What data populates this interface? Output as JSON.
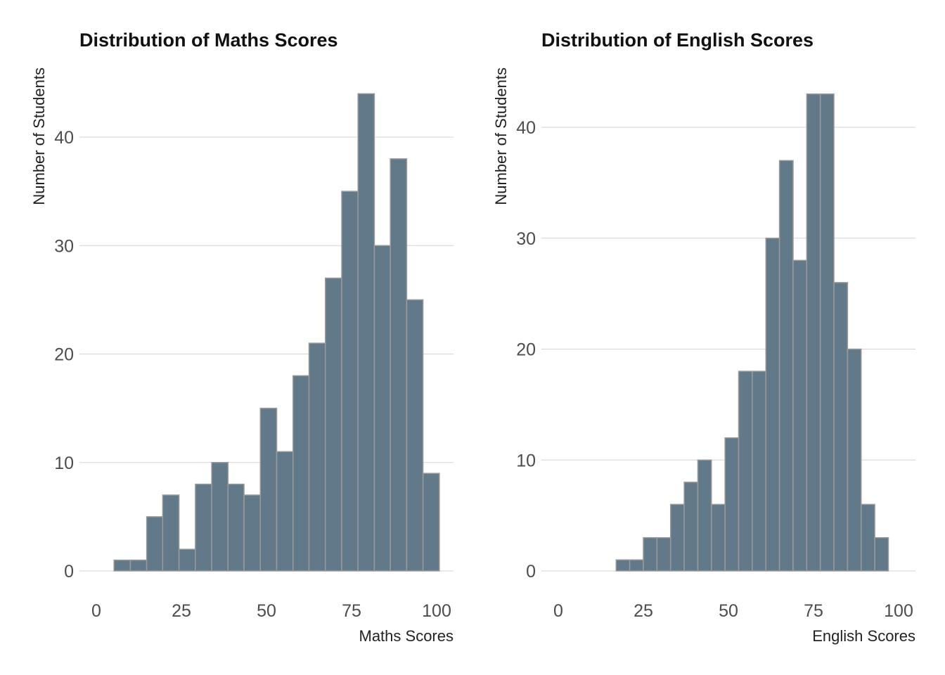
{
  "chart_data": [
    {
      "type": "bar",
      "title": "Distribution of Maths Scores",
      "xlabel": "Maths Scores",
      "ylabel": "Number of Students",
      "xlim": [
        0,
        105
      ],
      "ylim": [
        0,
        44
      ],
      "xticks": [
        0,
        25,
        50,
        75,
        100
      ],
      "yticks": [
        0,
        10,
        20,
        30,
        40
      ],
      "grid": "horizontal",
      "bar_color": "#62798A",
      "bin_edges": [
        5.2,
        10.0,
        14.8,
        19.5,
        24.3,
        29.1,
        33.9,
        38.7,
        43.4,
        48.2,
        53.0,
        57.8,
        62.5,
        67.3,
        72.1,
        76.9,
        81.7,
        86.4,
        91.2,
        96.0,
        100.8
      ],
      "values": [
        1,
        1,
        5,
        7,
        2,
        8,
        10,
        8,
        7,
        15,
        11,
        18,
        21,
        27,
        35,
        44,
        30,
        38,
        25,
        9
      ]
    },
    {
      "type": "bar",
      "title": "Distribution of English Scores",
      "xlabel": "English Scores",
      "ylabel": "Number of Students",
      "xlim": [
        0,
        105
      ],
      "ylim": [
        0,
        43
      ],
      "xticks": [
        0,
        25,
        50,
        75,
        100
      ],
      "yticks": [
        0,
        10,
        20,
        30,
        40
      ],
      "grid": "horizontal",
      "bar_color": "#62798A",
      "bin_edges": [
        17.0,
        21.0,
        25.0,
        29.0,
        33.0,
        37.0,
        41.0,
        45.0,
        49.0,
        53.0,
        57.0,
        61.0,
        65.0,
        69.0,
        73.0,
        77.0,
        81.0,
        85.0,
        89.0,
        93.0,
        97.0
      ],
      "values": [
        1,
        1,
        3,
        3,
        6,
        8,
        10,
        6,
        12,
        18,
        18,
        30,
        37,
        28,
        43,
        43,
        26,
        20,
        6,
        3
      ]
    }
  ]
}
